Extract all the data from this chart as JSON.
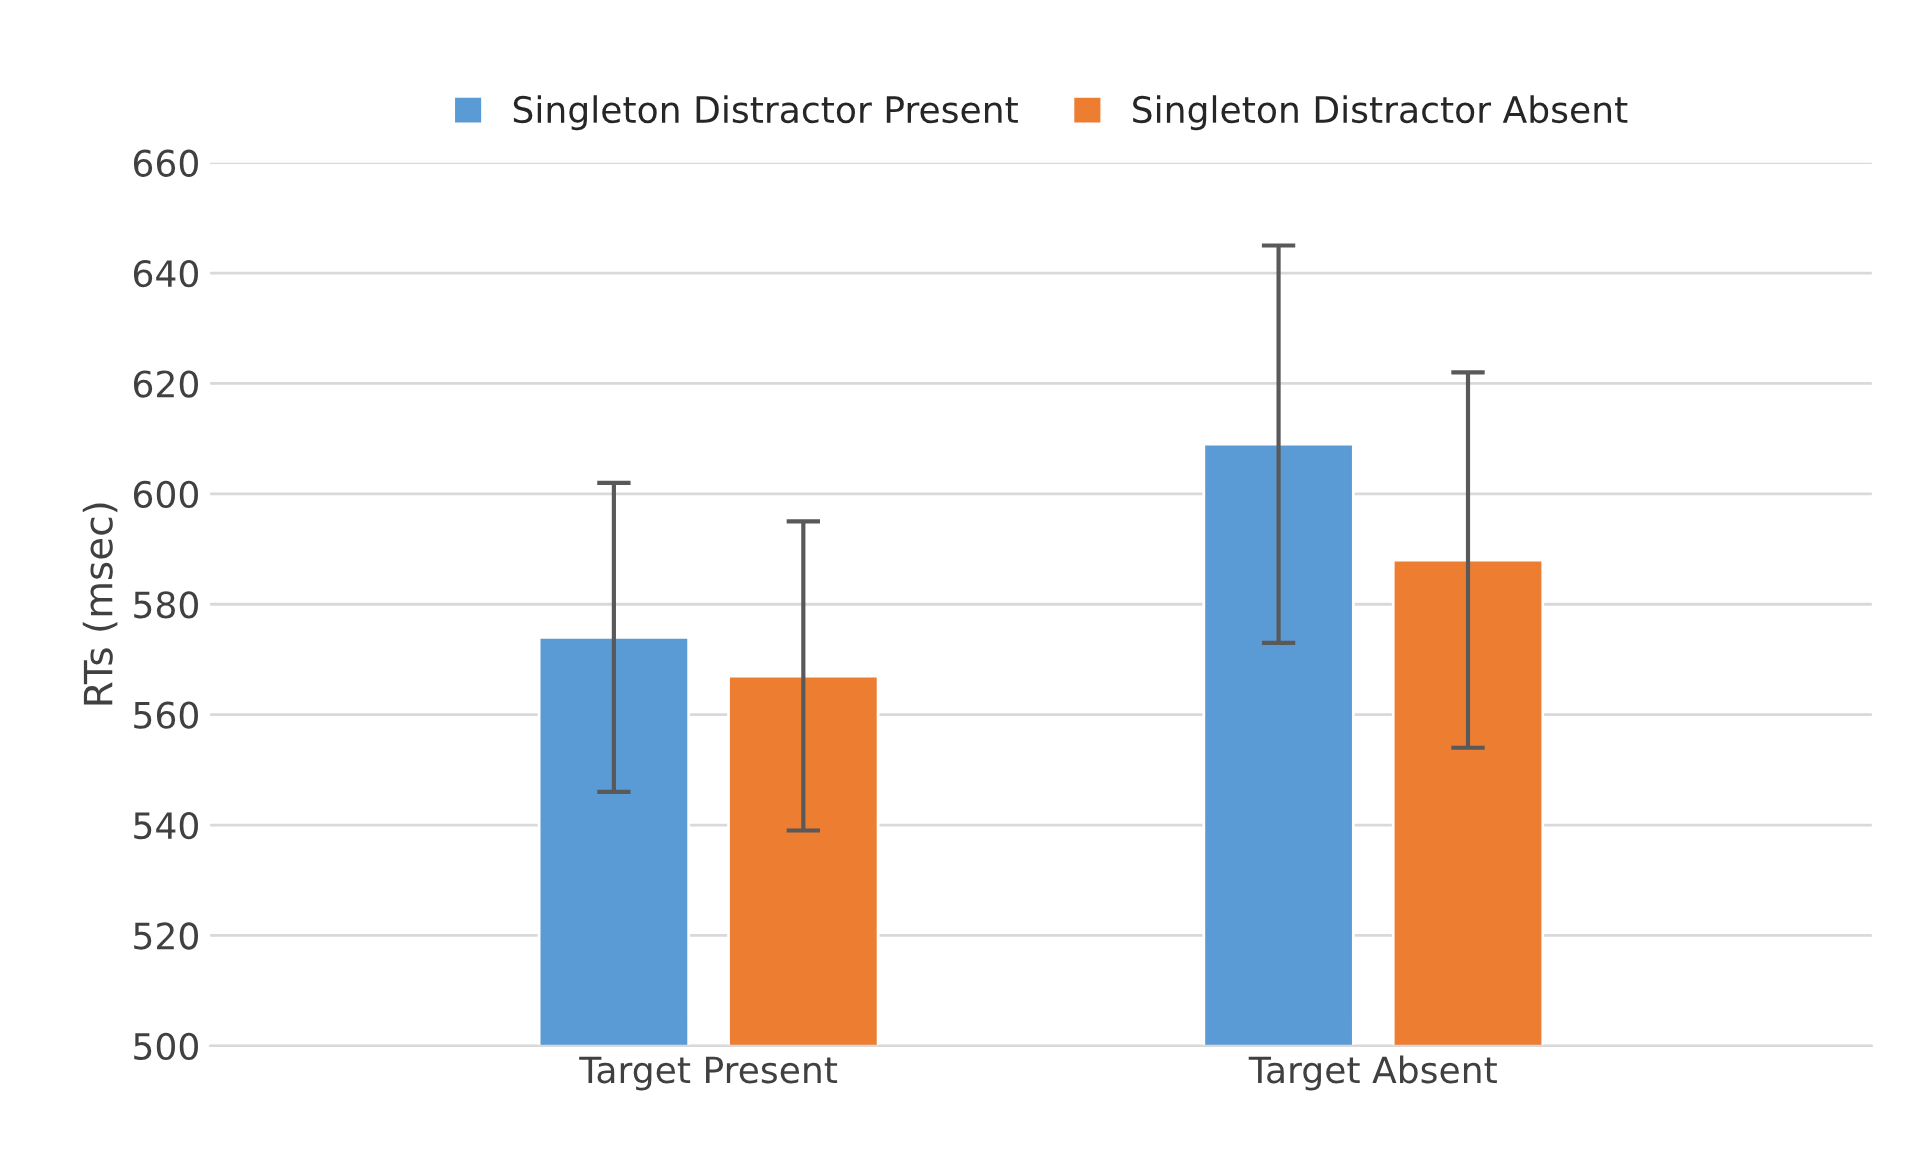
{
  "chart_data": {
    "type": "bar",
    "ylabel": "RTs (msec)",
    "categories": [
      "Target Present",
      "Target Absent"
    ],
    "series": [
      {
        "name": "Singleton Distractor Present",
        "color": "#5b9bd5",
        "values": [
          574,
          609
        ],
        "errors": [
          28,
          36
        ]
      },
      {
        "name": "Singleton Distractor Absent",
        "color": "#ed7d31",
        "values": [
          567,
          588
        ],
        "errors": [
          28,
          34
        ]
      }
    ],
    "ylim": [
      500,
      660
    ],
    "yticks": [
      500,
      520,
      540,
      560,
      580,
      600,
      620,
      640,
      660
    ],
    "grid": "y",
    "legend": "top"
  }
}
